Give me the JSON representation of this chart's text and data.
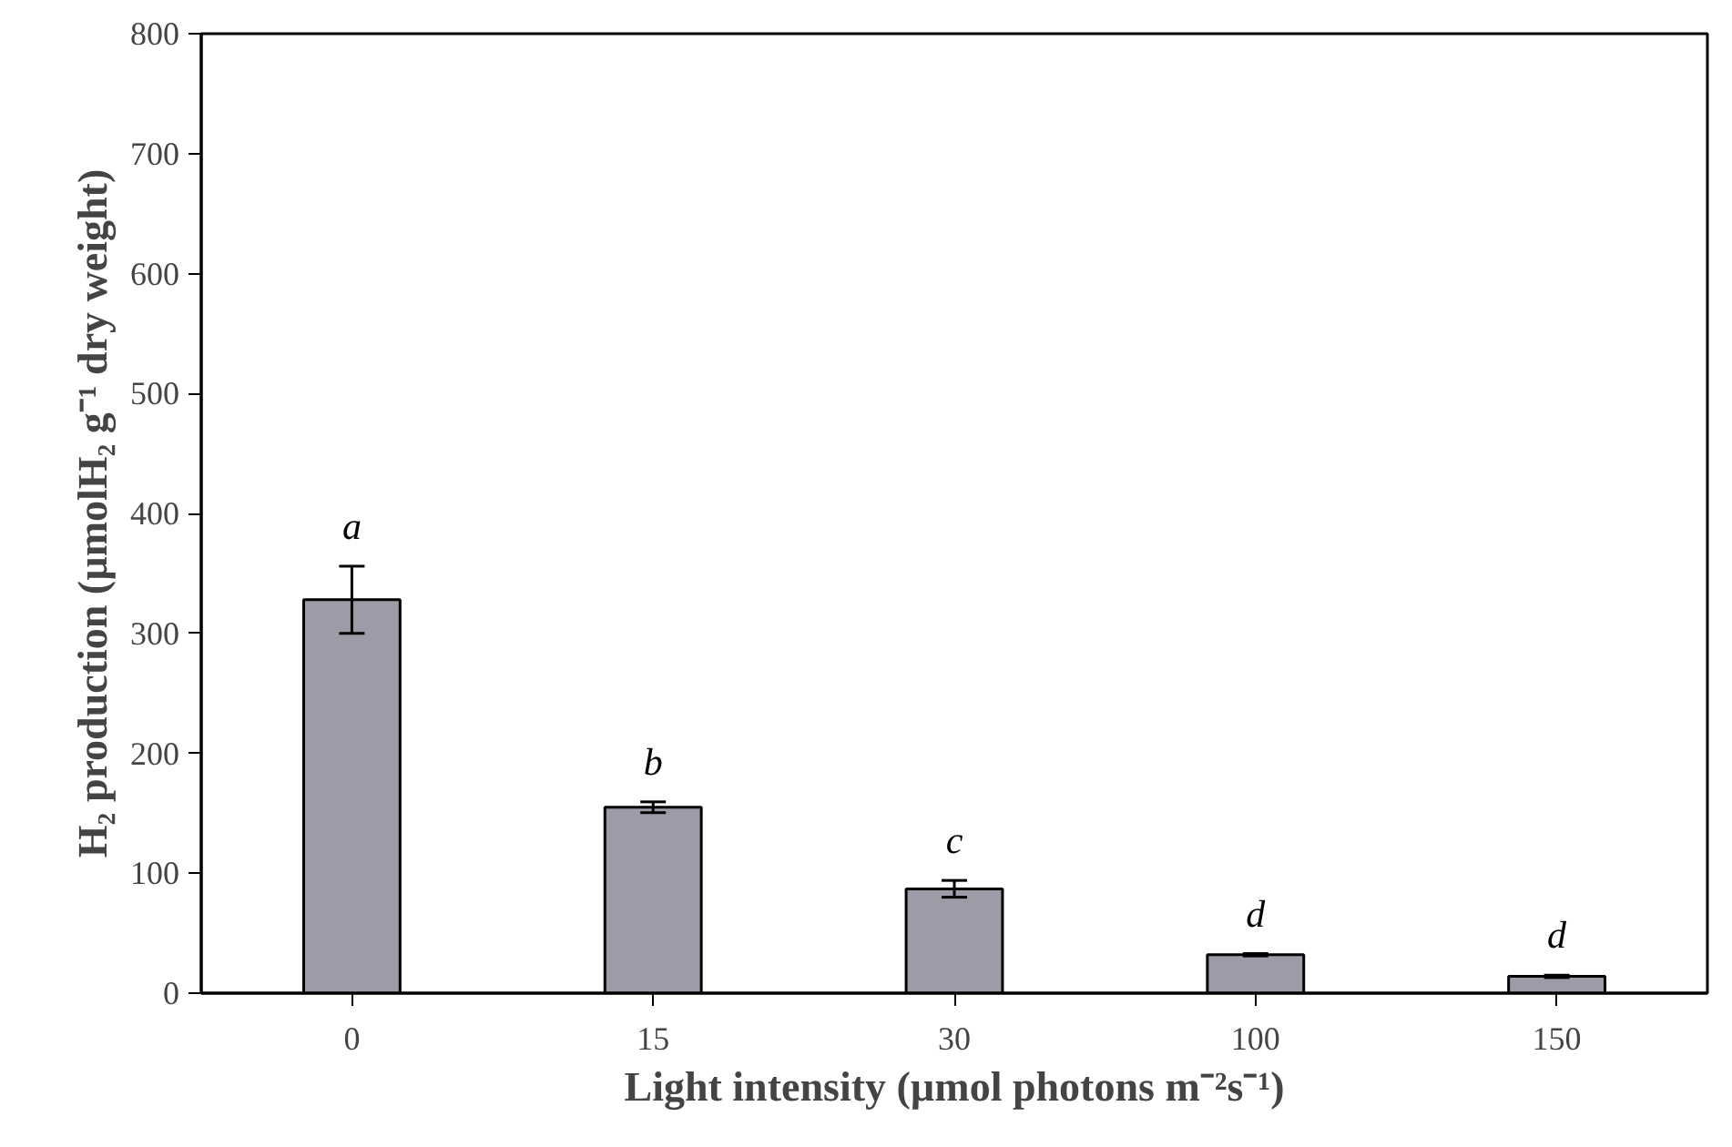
{
  "chart_data": {
    "type": "bar",
    "xlabel": "Light intensity (µmol photons m⁻²s⁻¹)",
    "ylabel": "H₂ production (µmolH₂ g⁻¹ dry weight)",
    "categories": [
      "0",
      "15",
      "30",
      "100",
      "150"
    ],
    "values": [
      328,
      155,
      87,
      32,
      14
    ],
    "errors": [
      28,
      4.5,
      7,
      1,
      1
    ],
    "color": "#9c9ca8",
    "ylim": [
      0,
      800
    ],
    "yticks": [
      0,
      100,
      200,
      300,
      400,
      500,
      600,
      700,
      800
    ],
    "grid": false,
    "annotations": [
      "a",
      "b",
      "c",
      "d",
      "d"
    ]
  }
}
